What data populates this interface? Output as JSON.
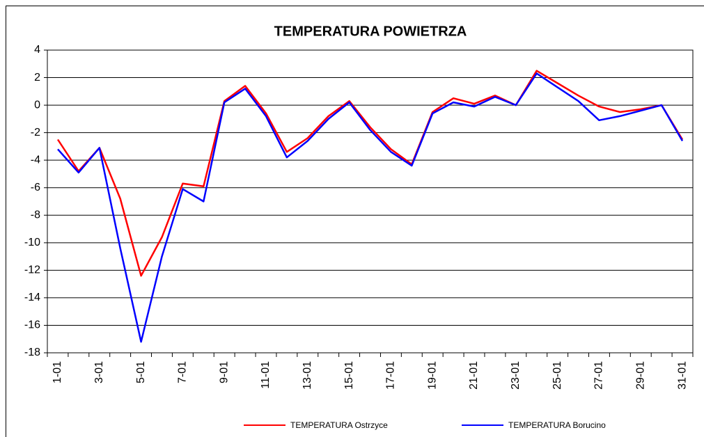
{
  "chart_data": {
    "type": "line",
    "title": "TEMPERATURA POWIETRZA",
    "categories": [
      "1-01",
      null,
      "3-01",
      null,
      "5-01",
      null,
      "7-01",
      null,
      "9-01",
      null,
      "11-01",
      null,
      "13-01",
      null,
      "15-01",
      null,
      "17-01",
      null,
      "19-01",
      null,
      "21-01",
      null,
      "23-01",
      null,
      "25-01",
      null,
      "27-01",
      null,
      "29-01",
      null,
      "31-01"
    ],
    "series": [
      {
        "name": "TEMPERATURA Ostrzyce",
        "color": "#ff0000",
        "values": [
          -2.5,
          -4.8,
          -3.1,
          -6.8,
          -12.4,
          -9.6,
          -5.7,
          -5.9,
          0.3,
          1.4,
          -0.6,
          -3.4,
          -2.4,
          -0.8,
          0.3,
          -1.6,
          -3.2,
          -4.3,
          -0.5,
          0.5,
          0.1,
          0.7,
          0.0,
          2.5,
          1.6,
          0.7,
          -0.1,
          -0.5,
          -0.3,
          0.0,
          -2.5
        ]
      },
      {
        "name": "TEMPERATURA Borucino",
        "color": "#0000ff",
        "values": [
          -3.2,
          -4.9,
          -3.1,
          -10.4,
          -17.2,
          -11.0,
          -6.1,
          -7.0,
          0.2,
          1.2,
          -0.8,
          -3.8,
          -2.6,
          -1.0,
          0.2,
          -1.8,
          -3.4,
          -4.4,
          -0.6,
          0.2,
          -0.1,
          0.6,
          0.0,
          2.3,
          1.3,
          0.3,
          -1.1,
          -0.8,
          -0.4,
          0.0,
          -2.6
        ]
      }
    ],
    "ylim": [
      -18,
      4
    ],
    "yticks": [
      -18,
      -16,
      -14,
      -12,
      -10,
      -8,
      -6,
      -4,
      -2,
      0,
      2,
      4
    ],
    "grid": true
  }
}
